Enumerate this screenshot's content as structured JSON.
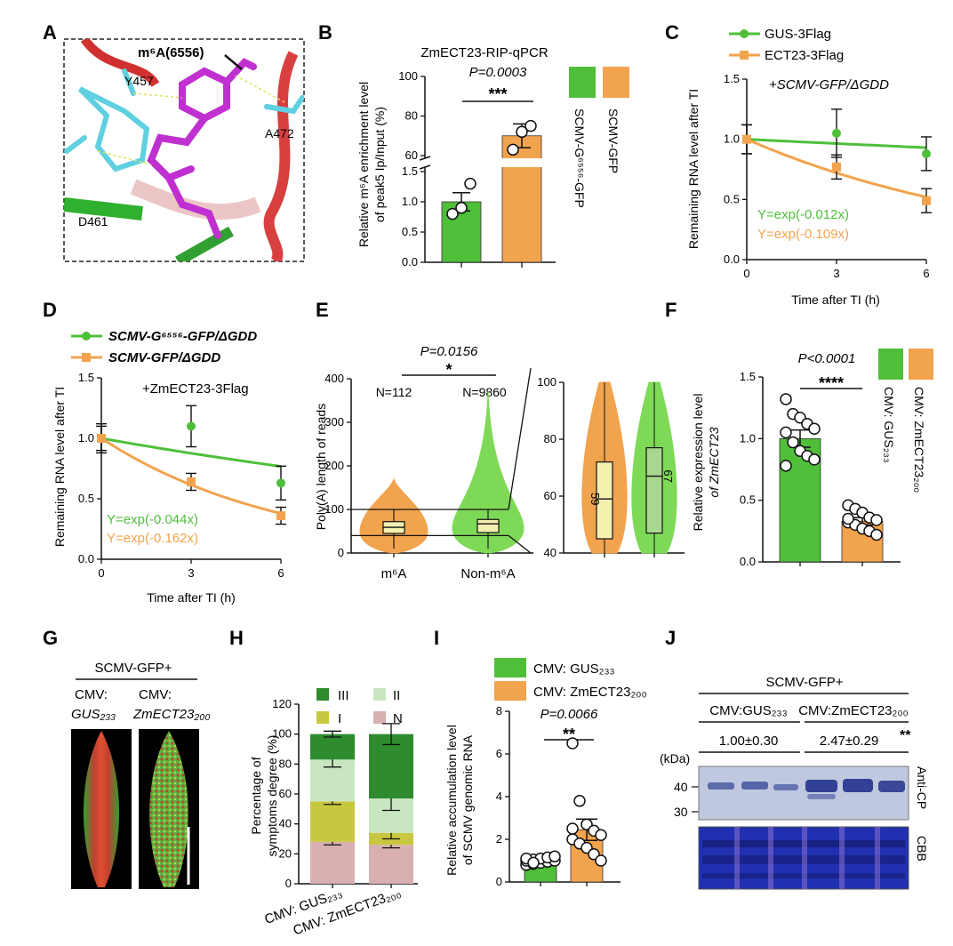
{
  "colors": {
    "green": "#4fbf3a",
    "light_green": "#7ed957",
    "orange": "#f2a34e",
    "dark_green": "#2e8b2e",
    "pale_green": "#c8e6c0",
    "olive": "#c8c840",
    "pink": "#d9b0b0",
    "cyan": "#5fd0e0",
    "magenta": "#c030d0",
    "cbb_blue": "#2030b0"
  },
  "panels": {
    "A": {
      "label": "A",
      "annotation": "m⁶A(6556)",
      "residues": [
        "Y457",
        "A472",
        "D461"
      ]
    },
    "B": {
      "label": "B",
      "title": "ZmECT23-RIP-qPCR",
      "pvalue": "P=0.0003",
      "stars": "***",
      "ylabel_line1": "Relative m⁶A enrichment level",
      "ylabel_line2": "of peak5 Ip/Input (%)",
      "legend": [
        "SCMV-G⁶⁵⁵⁶-GFP",
        "SCMV-GFP"
      ]
    },
    "C": {
      "label": "C",
      "legend": [
        "GUS-3Flag",
        "ECT23-3Flag"
      ],
      "condition": "+SCMV-GFP/ΔGDD",
      "ylabel": "Remaining RNA level after TI",
      "xlabel": "Time after TI (h)",
      "eq1": "Y=exp(-0.012x)",
      "eq2": "Y=exp(-0.109x)"
    },
    "D": {
      "label": "D",
      "legend": [
        "SCMV-G⁶⁵⁵⁶-GFP/ΔGDD",
        "SCMV-GFP/ΔGDD"
      ],
      "condition": "+ZmECT23-3Flag",
      "ylabel": "Remaining RNA level after TI",
      "xlabel": "Time after TI (h)",
      "eq1": "Y=exp(-0.044x)",
      "eq2": "Y=exp(-0.162x)"
    },
    "E": {
      "label": "E",
      "pvalue": "P=0.0156",
      "stars": "*",
      "n1": "N=112",
      "n2": "N=9860",
      "ylabel": "Poly(A) length of reads",
      "median1": "59",
      "median2": "67"
    },
    "F": {
      "label": "F",
      "pvalue": "P<0.0001",
      "stars": "****",
      "ylabel_line1": "Relative expression level",
      "ylabel_line2": "of ZmECT23",
      "legend": [
        "CMV: GUS₂₃₃",
        "CMV: ZmECT23₂₀₀"
      ]
    },
    "G": {
      "label": "G",
      "title": "SCMV-GFP+",
      "col1_line1": "CMV:",
      "col1_line2": "GUS₂₃₃",
      "col2_line1": "CMV:",
      "col2_line2": "ZmECT23₂₀₀"
    },
    "H": {
      "label": "H",
      "ylabel_line1": "Percentage of",
      "ylabel_line2": "symptoms degree (%)",
      "legend": [
        "III",
        "II",
        "I",
        "N"
      ]
    },
    "I": {
      "label": "I",
      "legend": [
        "CMV: GUS₂₃₃",
        "CMV: ZmECT23₂₀₀"
      ],
      "pvalue": "P=0.0066",
      "stars": "**",
      "ylabel_line1": "Relative accumulation level",
      "ylabel_line2": "of SCMV genomic RNA"
    },
    "J": {
      "label": "J",
      "title": "SCMV-GFP+",
      "group1": "CMV:GUS₂₃₃",
      "group2": "CMV:ZmECT23₂₀₀",
      "quant1": "1.00±0.30",
      "quant2": "2.47±0.29",
      "quant2_stars": "**",
      "kda": "(kDa)",
      "mw": [
        "40",
        "30"
      ],
      "blot1": "Anti-CP",
      "blot2": "CBB"
    }
  },
  "chart_data": [
    {
      "panel": "B",
      "type": "bar",
      "categories": [
        "SCMV-G⁶⁵⁵⁶-GFP",
        "SCMV-GFP"
      ],
      "values": [
        1.0,
        70
      ],
      "errors": [
        0.15,
        6
      ],
      "points": [
        [
          0.8,
          1.3,
          0.9
        ],
        [
          63,
          75,
          72
        ]
      ],
      "ylim_lower": [
        0,
        1.5
      ],
      "ylim_upper": [
        60,
        100
      ],
      "yticks_lower": [
        0.0,
        0.5,
        1.0,
        1.5
      ],
      "yticks_upper": [
        60,
        80,
        100
      ],
      "ytick_labels": [
        "0.0",
        "0.5",
        "1.0",
        "1.5",
        "60",
        "80",
        "100"
      ]
    },
    {
      "panel": "C",
      "type": "line",
      "x": [
        0,
        3,
        6
      ],
      "series": [
        {
          "name": "GUS-3Flag",
          "values": [
            1.0,
            1.05,
            0.88
          ],
          "errors": [
            0.12,
            0.2,
            0.14
          ],
          "rate": 0.012
        },
        {
          "name": "ECT23-3Flag",
          "values": [
            1.0,
            0.77,
            0.49
          ],
          "errors": [
            0.12,
            0.1,
            0.1
          ],
          "rate": 0.109
        }
      ],
      "xlim": [
        0,
        6
      ],
      "ylim": [
        0,
        1.5
      ],
      "xticks": [
        0,
        3,
        6
      ],
      "yticks": [
        0.0,
        0.5,
        1.0,
        1.5
      ],
      "ytick_labels": [
        "0.0",
        "0.5",
        "1.0",
        "1.5"
      ]
    },
    {
      "panel": "D",
      "type": "line",
      "x": [
        0,
        3,
        6
      ],
      "series": [
        {
          "name": "SCMV-G⁶⁵⁵⁶-GFP/ΔGDD",
          "values": [
            1.0,
            1.1,
            0.63
          ],
          "errors": [
            0.12,
            0.17,
            0.14
          ],
          "rate": 0.044
        },
        {
          "name": "SCMV-GFP/ΔGDD",
          "values": [
            1.0,
            0.64,
            0.36
          ],
          "errors": [
            0.1,
            0.07,
            0.07
          ],
          "rate": 0.162
        }
      ],
      "xlim": [
        0,
        6
      ],
      "ylim": [
        0,
        1.5
      ],
      "xticks": [
        0,
        3,
        6
      ],
      "yticks": [
        0.0,
        0.5,
        1.0,
        1.5
      ],
      "ytick_labels": [
        "0.0",
        "0.5",
        "1.0",
        "1.5"
      ]
    },
    {
      "panel": "E",
      "type": "violin",
      "categories": [
        "m⁶A",
        "Non-m⁶A"
      ],
      "median": [
        59,
        67
      ],
      "q1": [
        45,
        47
      ],
      "q3": [
        72,
        77
      ],
      "whisker_low": [
        10,
        10
      ],
      "whisker_high": [
        100,
        100
      ],
      "max": [
        170,
        370
      ],
      "ylim": [
        0,
        400
      ],
      "yticks": [
        0,
        100,
        200,
        300,
        400
      ],
      "zoom_ylim": [
        40,
        100
      ],
      "zoom_yticks": [
        40,
        60,
        80,
        100
      ]
    },
    {
      "panel": "F",
      "type": "bar",
      "categories": [
        "CMV: GUS₂₃₃",
        "CMV: ZmECT23₂₀₀"
      ],
      "values": [
        1.0,
        0.33
      ],
      "errors": [
        0.07,
        0.03
      ],
      "points": [
        [
          1.32,
          1.2,
          1.17,
          1.12,
          1.08,
          1.05,
          0.97,
          0.9,
          0.86,
          0.83,
          0.78
        ],
        [
          0.46,
          0.43,
          0.4,
          0.36,
          0.34,
          0.32,
          0.3,
          0.27,
          0.25,
          0.22,
          0.35
        ]
      ],
      "ylim": [
        0,
        1.5
      ],
      "yticks": [
        0.0,
        0.5,
        1.0,
        1.5
      ],
      "ytick_labels": [
        "0.0",
        "0.5",
        "1.0",
        "1.5"
      ]
    },
    {
      "panel": "H",
      "type": "bar",
      "stacked": true,
      "categories": [
        "CMV: GUS₂₃₃",
        "CMV: ZmECT23₂₀₀"
      ],
      "series": [
        {
          "name": "N",
          "values": [
            28,
            26
          ],
          "errors": [
            2,
            2
          ]
        },
        {
          "name": "I",
          "values": [
            27,
            8
          ],
          "errors": [
            2,
            4
          ]
        },
        {
          "name": "II",
          "values": [
            28,
            23
          ],
          "errors": [
            5,
            8
          ]
        },
        {
          "name": "III",
          "values": [
            17,
            43
          ],
          "errors": [
            2,
            7
          ]
        }
      ],
      "ylim": [
        0,
        120
      ],
      "yticks": [
        0,
        20,
        40,
        60,
        80,
        100,
        120
      ]
    },
    {
      "panel": "I",
      "type": "bar",
      "categories": [
        "CMV: GUS₂₃₃",
        "CMV: ZmECT23₂₀₀"
      ],
      "values": [
        1.0,
        2.45
      ],
      "errors": [
        0.05,
        0.5
      ],
      "points": [
        [
          0.8,
          0.85,
          0.9,
          0.95,
          1.0,
          1.0,
          1.05,
          1.1,
          1.15,
          1.2,
          1.1,
          0.9
        ],
        [
          6.5,
          3.8,
          2.7,
          2.4,
          2.2,
          2.0,
          1.8,
          1.6,
          1.3,
          1.0,
          2.5
        ]
      ],
      "ylim": [
        0,
        8
      ],
      "yticks": [
        0,
        2,
        4,
        6,
        8
      ]
    }
  ]
}
